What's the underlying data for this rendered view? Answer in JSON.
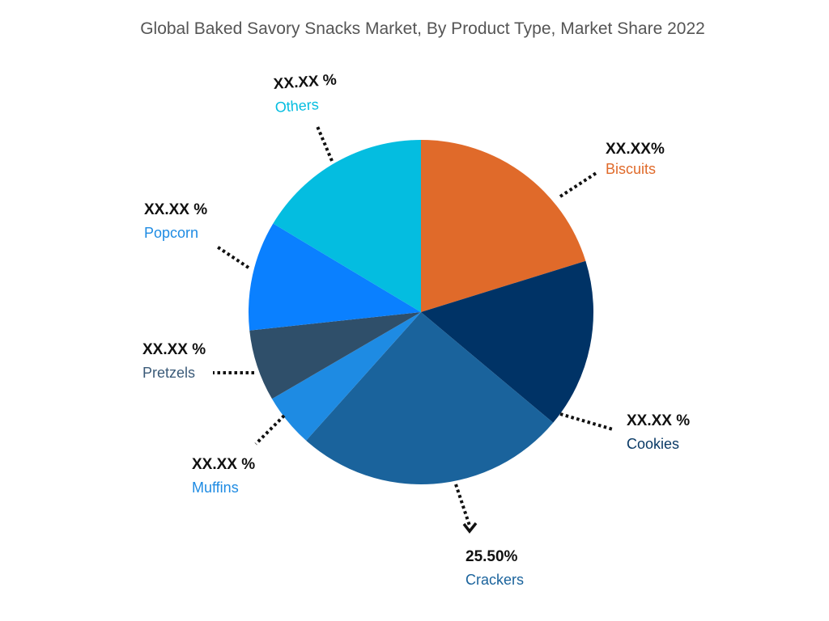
{
  "title": "Global Baked Savory Snacks Market, By Product Type, Market Share 2022",
  "labels": {
    "biscuits": {
      "value": "XX.XX%",
      "name": "Biscuits",
      "color": "#E06A2A"
    },
    "cookies": {
      "value": "XX.XX %",
      "name": "Cookies",
      "color": "#003366"
    },
    "crackers": {
      "value": "25.50%",
      "name": "Crackers",
      "color": "#1A639C"
    },
    "muffins": {
      "value": "XX.XX %",
      "name": "Muffins",
      "color": "#1E8BE3"
    },
    "pretzels": {
      "value": "XX.XX %",
      "name": "Pretzels",
      "color": "#2F4F6A"
    },
    "popcorn": {
      "value": "XX.XX %",
      "name": "Popcorn",
      "color": "#0A80FF"
    },
    "others": {
      "value": "XX.XX %",
      "name": "Others",
      "color": "#04BDE0"
    }
  },
  "chart_data": {
    "type": "pie",
    "title": "Global Baked Savory Snacks Market, By Product Type, Market Share 2022",
    "categories": [
      "Biscuits",
      "Cookies",
      "Crackers",
      "Muffins",
      "Pretzels",
      "Popcorn",
      "Others"
    ],
    "values": [
      20.2,
      15.9,
      25.5,
      5.0,
      6.7,
      10.3,
      16.4
    ],
    "value_labels": [
      "XX.XX%",
      "XX.XX %",
      "25.50%",
      "XX.XX %",
      "XX.XX %",
      "XX.XX %",
      "XX.XX %"
    ],
    "colors": [
      "#E06A2A",
      "#003366",
      "#1A639C",
      "#1E8BE3",
      "#2F4F6A",
      "#0A80FF",
      "#04BDE0"
    ],
    "start_angle_deg": 0,
    "direction": "clockwise",
    "legend": "none (callout labels with dotted leader lines)"
  }
}
